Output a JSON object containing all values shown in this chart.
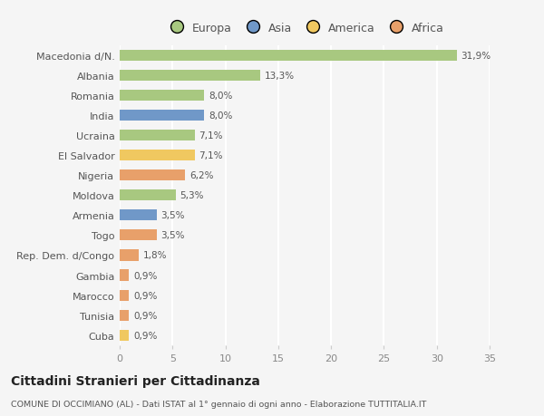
{
  "categories": [
    "Cuba",
    "Tunisia",
    "Marocco",
    "Gambia",
    "Rep. Dem. d/Congo",
    "Togo",
    "Armenia",
    "Moldova",
    "Nigeria",
    "El Salvador",
    "Ucraina",
    "India",
    "Romania",
    "Albania",
    "Macedonia d/N."
  ],
  "values": [
    0.9,
    0.9,
    0.9,
    0.9,
    1.8,
    3.5,
    3.5,
    5.3,
    6.2,
    7.1,
    7.1,
    8.0,
    8.0,
    13.3,
    31.9
  ],
  "labels": [
    "0,9%",
    "0,9%",
    "0,9%",
    "0,9%",
    "1,8%",
    "3,5%",
    "3,5%",
    "5,3%",
    "6,2%",
    "7,1%",
    "7,1%",
    "8,0%",
    "8,0%",
    "13,3%",
    "31,9%"
  ],
  "colors": [
    "#f0c860",
    "#e8a06a",
    "#e8a06a",
    "#e8a06a",
    "#e8a06a",
    "#e8a06a",
    "#7098c8",
    "#a8c880",
    "#e8a06a",
    "#f0c860",
    "#a8c880",
    "#7098c8",
    "#a8c880",
    "#a8c880",
    "#a8c880"
  ],
  "legend_labels": [
    "Europa",
    "Asia",
    "America",
    "Africa"
  ],
  "legend_colors": [
    "#a8c880",
    "#7098c8",
    "#f0c860",
    "#e8a06a"
  ],
  "xlim": [
    0,
    35
  ],
  "xticks": [
    0,
    5,
    10,
    15,
    20,
    25,
    30,
    35
  ],
  "title": "Cittadini Stranieri per Cittadinanza",
  "subtitle": "COMUNE DI OCCIMIANO (AL) - Dati ISTAT al 1° gennaio di ogni anno - Elaborazione TUTTITALIA.IT",
  "background_color": "#f5f5f5",
  "bar_height": 0.55
}
